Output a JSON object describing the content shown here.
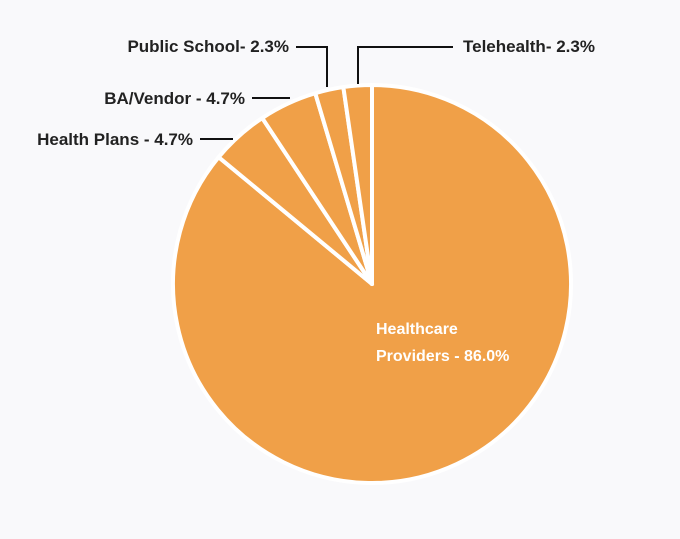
{
  "chart_data": {
    "type": "pie",
    "slices": [
      {
        "label": "Healthcare Providers - 86.0%",
        "label_lines": [
          "Healthcare",
          "Providers - 86.0%"
        ],
        "value": 86.0
      },
      {
        "label": "Health Plans - 4.7%",
        "label_lines": [
          "Health Plans - 4.7%"
        ],
        "value": 4.7
      },
      {
        "label": "BA/Vendor - 4.7%",
        "label_lines": [
          "BA/Vendor - 4.7%"
        ],
        "value": 4.7
      },
      {
        "label": "Public School- 2.3%",
        "label_lines": [
          "Public School- 2.3%"
        ],
        "value": 2.3
      },
      {
        "label": "Telehealth- 2.3%",
        "label_lines": [
          "Telehealth- 2.3%"
        ],
        "value": 2.3
      }
    ],
    "colors": {
      "slice": "#f0a048",
      "separator": "#ffffff",
      "label": "#222222",
      "inside_label": "#ffffff",
      "leader": "#111111",
      "background": "#f9f9fb"
    },
    "legend": "none",
    "grid": false
  }
}
